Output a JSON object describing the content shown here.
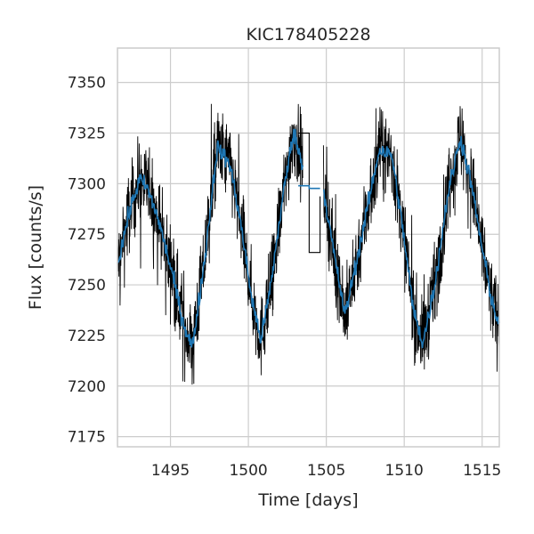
{
  "chart_data": {
    "type": "line",
    "title": "KIC178405228",
    "xlabel": "Time [days]",
    "ylabel": "Flux [counts/s]",
    "xlim": [
      1491.6,
      1516.1
    ],
    "ylim": [
      7170,
      7367
    ],
    "xticks": [
      1495,
      1500,
      1505,
      1510,
      1515
    ],
    "yticks": [
      7175,
      7200,
      7225,
      7250,
      7275,
      7300,
      7325,
      7350
    ],
    "grid": true,
    "gap": [
      1504.0,
      1504.8
    ],
    "series": [
      {
        "style": "raw-flux-with-errors",
        "color": "#000000",
        "x": [
          1491.6,
          1492.3,
          1493.0,
          1493.5,
          1494.2,
          1495.0,
          1495.8,
          1496.4,
          1497.2,
          1498.0,
          1498.8,
          1499.5,
          1500.2,
          1500.8,
          1501.4,
          1502.2,
          1502.9,
          1503.3,
          1503.9,
          1504.4,
          1504.8,
          1505.5,
          1506.2,
          1507.3,
          1508.4,
          1509.2,
          1509.9,
          1510.6,
          1511.2,
          1512.0,
          1512.8,
          1513.6,
          1514.3,
          1515.0,
          1515.6,
          1516.1
        ],
        "y": [
          7260,
          7284,
          7302,
          7298,
          7283,
          7259,
          7232,
          7219,
          7263,
          7318,
          7310,
          7281,
          7244,
          7223,
          7248,
          7293,
          7326,
          7314,
          7300,
          7298,
          7298,
          7265,
          7235,
          7275,
          7317,
          7314,
          7278,
          7237,
          7221,
          7252,
          7295,
          7323,
          7300,
          7268,
          7243,
          7229
        ],
        "spread": 18
      },
      {
        "style": "binned-flux",
        "color": "#1f77b4",
        "x": [
          1491.6,
          1492.3,
          1493.0,
          1493.5,
          1494.2,
          1495.0,
          1495.8,
          1496.4,
          1497.2,
          1498.0,
          1498.8,
          1499.5,
          1500.2,
          1500.8,
          1501.4,
          1502.2,
          1502.9,
          1503.3,
          1503.9,
          1504.4,
          1504.8,
          1505.5,
          1506.2,
          1507.3,
          1508.4,
          1509.2,
          1509.9,
          1510.6,
          1511.2,
          1512.0,
          1512.8,
          1513.6,
          1514.3,
          1515.0,
          1515.6,
          1516.1
        ],
        "y": [
          7260,
          7284,
          7302,
          7298,
          7283,
          7259,
          7232,
          7219,
          7263,
          7318,
          7310,
          7281,
          7244,
          7223,
          7248,
          7293,
          7326,
          7314,
          7300,
          7298,
          7298,
          7265,
          7235,
          7275,
          7317,
          7314,
          7278,
          7237,
          7221,
          7252,
          7295,
          7323,
          7300,
          7268,
          7243,
          7229
        ]
      }
    ],
    "gap_bracket": {
      "x1": 1503.2,
      "x2": 1503.9,
      "x3": 1504.6,
      "y_top": 7325,
      "y_mid": 7299,
      "y_bottom": 7266
    }
  }
}
